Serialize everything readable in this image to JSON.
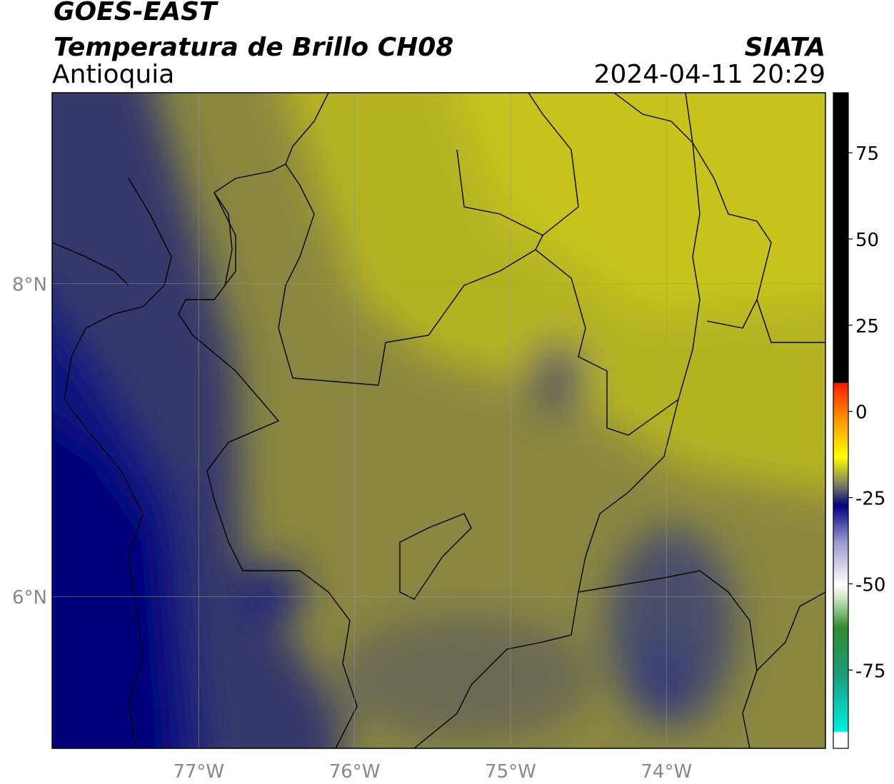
{
  "header": {
    "title": "GOES-EAST",
    "subtitle": "Temperatura de Brillo CH08",
    "region": "Antioquia",
    "source": "SIATA",
    "datetime": "2024-04-11 20:29"
  },
  "map": {
    "xlim": [
      -77.94,
      -72.98
    ],
    "ylim": [
      5.03,
      9.22
    ],
    "xticks": [
      {
        "value": -77,
        "label": "77°W"
      },
      {
        "value": -76,
        "label": "76°W"
      },
      {
        "value": -75,
        "label": "75°W"
      },
      {
        "value": -74,
        "label": "74°W"
      }
    ],
    "yticks": [
      {
        "value": 6,
        "label": "6°N"
      },
      {
        "value": 8,
        "label": "8°N"
      }
    ],
    "grid": true
  },
  "colorbar": {
    "clim": [
      -97.7,
      92.4
    ],
    "ticks": [
      -75,
      -50,
      -25,
      0,
      25,
      50,
      75
    ]
  }
}
